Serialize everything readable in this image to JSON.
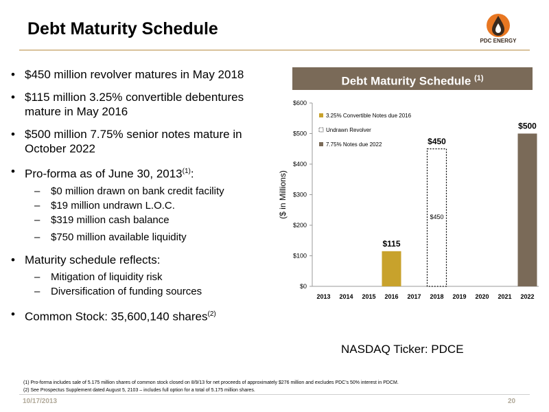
{
  "header": {
    "title": "Debt Maturity Schedule",
    "logo_text": "PDC ENERGY"
  },
  "bullets": [
    {
      "text": "$450 million revolver matures in May 2018"
    },
    {
      "text": "$115 million 3.25% convertible debentures mature in May 2016"
    },
    {
      "text": "$500 million 7.75% senior notes mature in October 2022"
    },
    {
      "text": "Pro-forma as of June 30, 2013",
      "sup": "(1)",
      "suffix": ":",
      "sub": [
        "$0 million drawn on bank credit facility",
        "$19 million undrawn L.O.C.",
        "$319 million cash balance",
        "$750 million available liquidity"
      ]
    },
    {
      "text": "Maturity schedule reflects:",
      "sub": [
        "Mitigation of liquidity risk",
        "Diversification of funding sources"
      ]
    },
    {
      "text": "Common Stock: 35,600,140 shares",
      "sup": "(2)"
    }
  ],
  "chart_header": {
    "title": "Debt Maturity Schedule",
    "sup": "(1)"
  },
  "chart_data": {
    "type": "bar",
    "categories": [
      "2013",
      "2014",
      "2015",
      "2016",
      "2017",
      "2018",
      "2019",
      "2020",
      "2021",
      "2022"
    ],
    "series": [
      {
        "name": "3.25% Convertible Notes due 2016",
        "color": "#c8a22c",
        "style": "solid",
        "values": [
          0,
          0,
          0,
          115,
          0,
          0,
          0,
          0,
          0,
          0
        ]
      },
      {
        "name": "Undrawn Revolver",
        "color": "#000000",
        "style": "dotted-outline",
        "values": [
          0,
          0,
          0,
          0,
          0,
          450,
          0,
          0,
          0,
          0
        ]
      },
      {
        "name": "7.75% Notes due 2022",
        "color": "#7a6a58",
        "style": "solid",
        "values": [
          0,
          0,
          0,
          0,
          0,
          0,
          0,
          0,
          0,
          500
        ]
      }
    ],
    "data_labels": [
      {
        "category": "2016",
        "text": "$115"
      },
      {
        "category": "2018",
        "text": "$450"
      },
      {
        "category": "2022",
        "text": "$500"
      }
    ],
    "inner_label": {
      "category": "2018",
      "text": "$450"
    },
    "yticks": [
      0,
      100,
      200,
      300,
      400,
      500,
      600
    ],
    "ytick_labels": [
      "$0",
      "$100",
      "$200",
      "$300",
      "$400",
      "$500",
      "$600"
    ],
    "ylim": [
      0,
      600
    ],
    "ylabel": "($ in Millions)",
    "legend_position": "top-left"
  },
  "ticker": "NASDAQ Ticker: PDCE",
  "footnotes": [
    "(1) Pro-forma includes sale of 5.175 million shares of common stock closed on 8/9/13 for net proceeds of approximately $276 million and excludes PDC's 50% interest in PDCM.",
    "(2) See Prospectus Supplement dated August 5, 2103 – includes full option for a total of 5.175 million shares."
  ],
  "footer": {
    "date": "10/17/2013",
    "page": "20"
  }
}
